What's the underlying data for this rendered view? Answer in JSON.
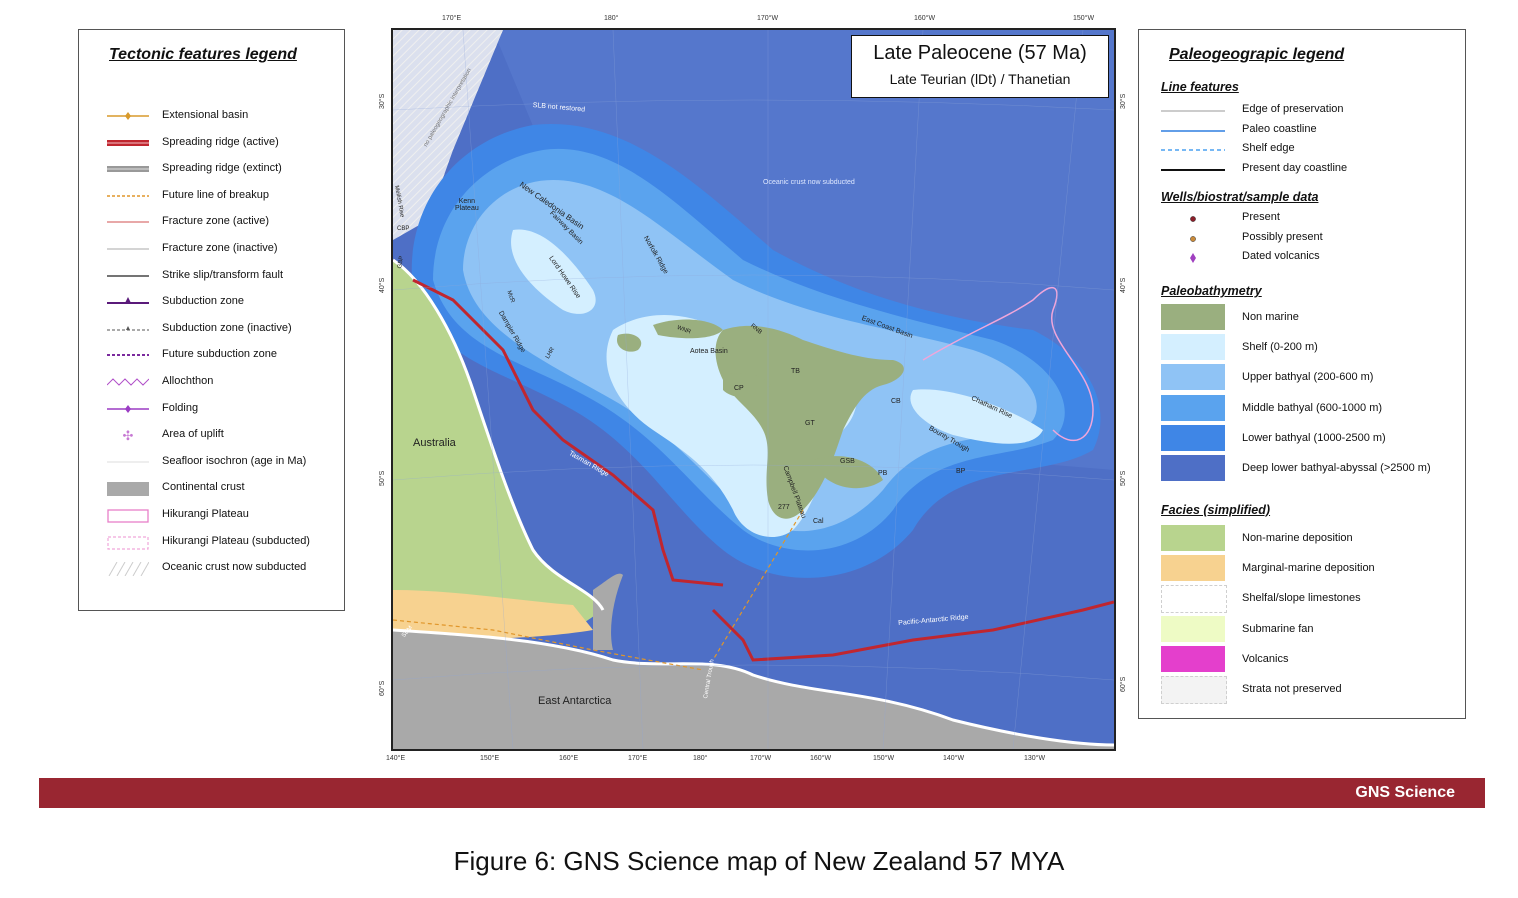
{
  "map": {
    "title": "Late Paleocene (57 Ma)",
    "subtitle": "Late Teurian (lDt) / Thanetian",
    "top_ticks": [
      "170°E",
      "180°",
      "170°W",
      "160°W",
      "150°W"
    ],
    "bottom_ticks": [
      "140°E",
      "150°E",
      "160°E",
      "170°E",
      "180°",
      "170°W",
      "160°W",
      "150°W",
      "140°W",
      "130°W"
    ],
    "left_ticks": [
      "30°S",
      "40°S",
      "50°S",
      "60°S"
    ],
    "right_ticks": [
      "30°S",
      "40°S",
      "50°S",
      "60°S"
    ],
    "labels": {
      "australia": "Australia",
      "east_antarctica": "East Antarctica",
      "oceanic_subducted": "Oceanic crust now subducted",
      "new_caledonia_basin": "New Caledonia Basin",
      "lord_howe_rise": "Lord Howe Rise",
      "dampier_ridge": "Dampier Ridge",
      "fairway_basin": "Fairway Basin",
      "norfolk_ridge": "Norfolk Ridge",
      "kenn_plateau": "Kenn\nPlateau",
      "tasman_ridge": "Tasman Ridge",
      "pacific_antarctic_ridge": "Pacific-Antarctic Ridge",
      "chatham_rise": "Chatham Rise",
      "bounty_trough": "Bounty Trough",
      "campbell_plateau": "Campbell Plateau",
      "east_coast_basin": "East Coast Basin",
      "aotea_basin": "Aotea  Basin",
      "slb": "SLB not restored",
      "no_paleo": "no paleogeographic interpretation",
      "mellish_rise": "Mellish Rise",
      "central_trough": "Central Trough",
      "tb": "TB",
      "gt": "GT",
      "cp": "CP",
      "cb": "CB",
      "gsb": "GSB",
      "pb": "PB",
      "bp": "BP",
      "cal": "Cal",
      "rnb": "RNB",
      "wnr": "WNR",
      "lhr": "LHR",
      "mcr": "McR",
      "cbp": "CBP",
      "gbp": "GBP",
      "sem": "SEM",
      "ts": "277"
    }
  },
  "tectonic_legend": {
    "title": "Tectonic features legend",
    "items": [
      {
        "label": "Extensional basin",
        "symbol": "extensional-basin",
        "color": "#d89a2b"
      },
      {
        "label": "Spreading ridge (active)",
        "symbol": "ridge-active",
        "color": "#c0262f"
      },
      {
        "label": "Spreading ridge (extinct)",
        "symbol": "ridge-extinct",
        "color": "#999999"
      },
      {
        "label": "Future line of breakup",
        "symbol": "future-breakup",
        "color": "#e0962a"
      },
      {
        "label": "Fracture zone (active)",
        "symbol": "fracture-active",
        "color": "#d05050"
      },
      {
        "label": "Fracture zone (inactive)",
        "symbol": "fracture-inactive",
        "color": "#aaaaaa"
      },
      {
        "label": "Strike slip/transform fault",
        "symbol": "strike-slip",
        "color": "#222222"
      },
      {
        "label": "Subduction zone",
        "symbol": "subduction",
        "color": "#5a1a7a"
      },
      {
        "label": "Subduction zone (inactive)",
        "symbol": "subduction-inactive",
        "color": "#555555"
      },
      {
        "label": "Future subduction zone",
        "symbol": "future-subduction",
        "color": "#7b2a9e"
      },
      {
        "label": "Allochthon",
        "symbol": "allochthon",
        "color": "#b04fc8"
      },
      {
        "label": "Folding",
        "symbol": "folding",
        "color": "#9b3cc4"
      },
      {
        "label": "Area of uplift",
        "symbol": "uplift",
        "color": "#c77ad4"
      },
      {
        "label": "Seafloor isochron (age in Ma)",
        "symbol": "isochron",
        "color": "#eeeeee"
      },
      {
        "label": "Continental crust",
        "symbol": "continental-crust",
        "color": "#a9a9a9"
      },
      {
        "label": "Hikurangi Plateau",
        "symbol": "hikurangi",
        "color": "#e77fc8"
      },
      {
        "label": "Hikurangi Plateau (subducted)",
        "symbol": "hikurangi-subducted",
        "color": "#f0a6da"
      },
      {
        "label": "Oceanic crust now subducted",
        "symbol": "oceanic-subducted",
        "color": "#cccccc"
      }
    ]
  },
  "paleo_legend": {
    "title": "Paleogeograpic legend",
    "line_features_title": "Line features",
    "line_features": [
      {
        "label": "Edge of preservation",
        "color": "#bbbbbb"
      },
      {
        "label": "Paleo coastline",
        "color": "#2f7fe0"
      },
      {
        "label": "Shelf edge",
        "color": "#4aa0f0"
      },
      {
        "label": "Present day coastline",
        "color": "#111111"
      }
    ],
    "wells_title": "Wells/biostrat/sample data",
    "wells": [
      {
        "label": "Present",
        "color": "#8b1f2a"
      },
      {
        "label": "Possibly present",
        "color": "#c98a3a"
      },
      {
        "label": "Dated volcanics",
        "color": "#a040c0"
      }
    ],
    "bathymetry_title": "Paleobathymetry",
    "bathymetry": [
      {
        "label": "Non marine",
        "color": "#9aaf7f"
      },
      {
        "label": "Shelf (0-200 m)",
        "color": "#d4efff"
      },
      {
        "label": "Upper bathyal (200-600 m)",
        "color": "#8fc3f5"
      },
      {
        "label": "Middle bathyal (600-1000 m)",
        "color": "#5aa3ee"
      },
      {
        "label": "Lower bathyal (1000-2500 m)",
        "color": "#3f86e6"
      },
      {
        "label": "Deep lower bathyal-abyssal (>2500 m)",
        "color": "#4e6fc6"
      }
    ],
    "facies_title": "Facies (simplified)",
    "facies": [
      {
        "label": "Non-marine deposition",
        "color": "#b8d48e"
      },
      {
        "label": "Marginal-marine deposition",
        "color": "#f7d290"
      },
      {
        "label": "Shelfal/slope limestones",
        "color": "#ffffff"
      },
      {
        "label": "Submarine fan",
        "color": "#eefbc5"
      },
      {
        "label": "Volcanics",
        "color": "#e43fcc"
      },
      {
        "label": "Strata not preserved",
        "color": "#f3f3f3"
      }
    ]
  },
  "footer": {
    "brand": "GNS Science",
    "color": "#992631"
  },
  "caption": "Figure 6: GNS Science map of New Zealand 57 MYA"
}
